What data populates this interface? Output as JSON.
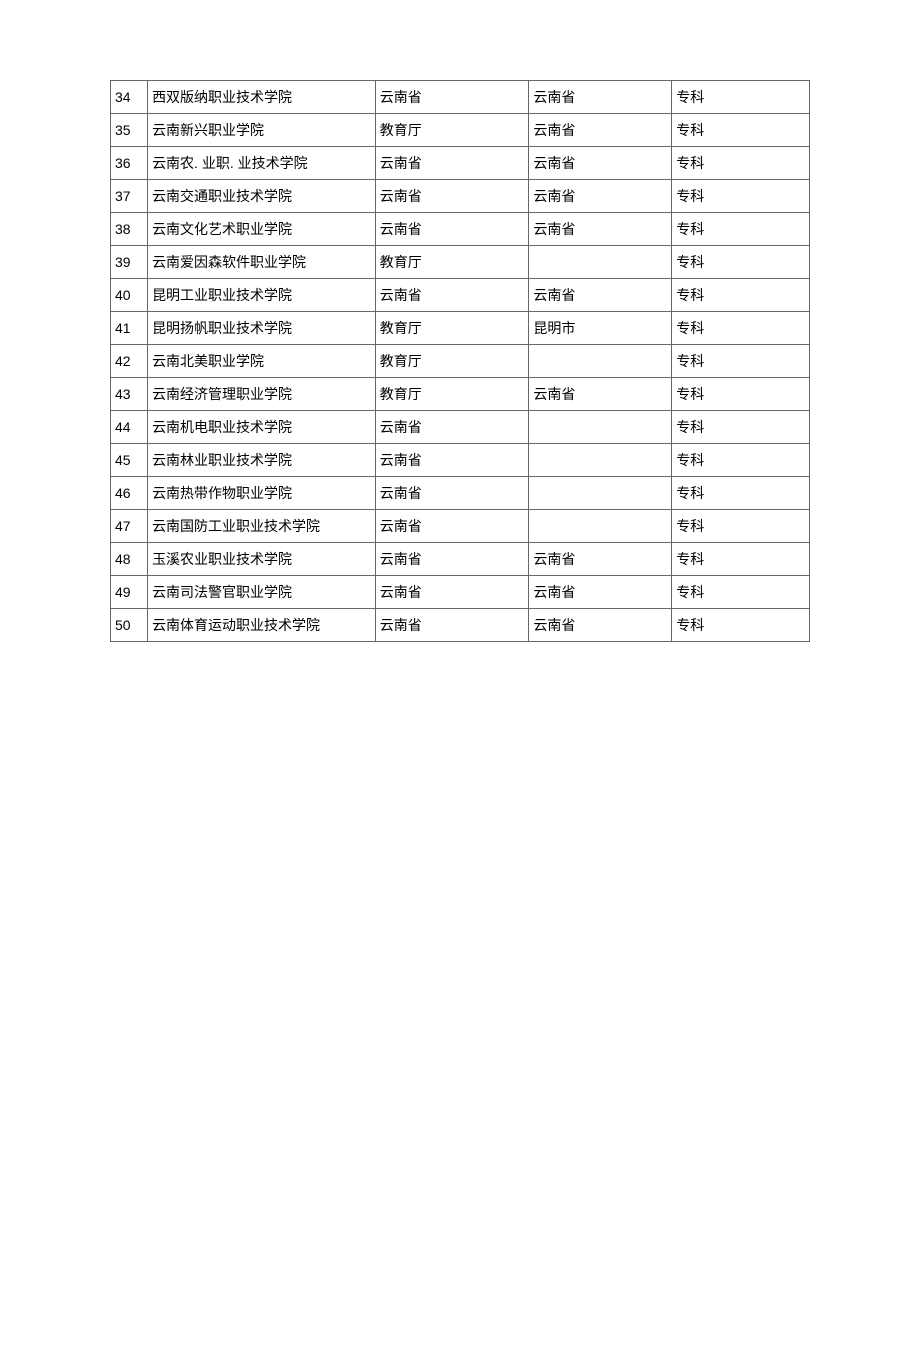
{
  "table": {
    "columns": [
      {
        "key": "num",
        "class": "col-num"
      },
      {
        "key": "name",
        "class": "col-name"
      },
      {
        "key": "dept",
        "class": "col-dept"
      },
      {
        "key": "region",
        "class": "col-region"
      },
      {
        "key": "level",
        "class": "col-level"
      }
    ],
    "rows": [
      {
        "num": "34",
        "name": "西双版纳职业技术学院",
        "dept": "云南省",
        "region": "云南省",
        "level": "专科"
      },
      {
        "num": "35",
        "name": "云南新兴职业学院",
        "dept": "教育厅",
        "region": "云南省",
        "level": "专科"
      },
      {
        "num": "36",
        "name": "云南农. 业职. 业技术学院",
        "dept": "云南省",
        "region": "云南省",
        "level": "专科"
      },
      {
        "num": "37",
        "name": "云南交通职业技术学院",
        "dept": "云南省",
        "region": "云南省",
        "level": "专科"
      },
      {
        "num": "38",
        "name": "云南文化艺术职业学院",
        "dept": "云南省",
        "region": "云南省",
        "level": "专科"
      },
      {
        "num": "39",
        "name": "云南爱因森软件职业学院",
        "dept": "教育厅",
        "region": "",
        "level": "专科"
      },
      {
        "num": "40",
        "name": "昆明工业职业技术学院",
        "dept": "云南省",
        "region": "云南省",
        "level": "专科"
      },
      {
        "num": "41",
        "name": "昆明扬帆职业技术学院",
        "dept": "教育厅",
        "region": "昆明市",
        "level": "专科"
      },
      {
        "num": "42",
        "name": "云南北美职业学院",
        "dept": "教育厅",
        "region": "",
        "level": "专科"
      },
      {
        "num": "43",
        "name": "云南经济管理职业学院",
        "dept": "教育厅",
        "region": "云南省",
        "level": "专科"
      },
      {
        "num": "44",
        "name": "云南机电职业技术学院",
        "dept": "云南省",
        "region": "",
        "level": "专科"
      },
      {
        "num": "45",
        "name": "云南林业职业技术学院",
        "dept": "云南省",
        "region": "",
        "level": "专科"
      },
      {
        "num": "46",
        "name": "云南热带作物职业学院",
        "dept": "云南省",
        "region": "",
        "level": "专科"
      },
      {
        "num": "47",
        "name": "云南国防工业职业技术学院",
        "dept": "云南省",
        "region": "",
        "level": "专科"
      },
      {
        "num": "48",
        "name": "玉溪农业职业技术学院",
        "dept": "云南省",
        "region": "云南省",
        "level": "专科"
      },
      {
        "num": "49",
        "name": "云南司法警官职业学院",
        "dept": "云南省",
        "region": "云南省",
        "level": "专科"
      },
      {
        "num": "50",
        "name": "云南体育运动职业技术学院",
        "dept": "云南省",
        "region": "云南省",
        "level": "专科"
      }
    ]
  }
}
